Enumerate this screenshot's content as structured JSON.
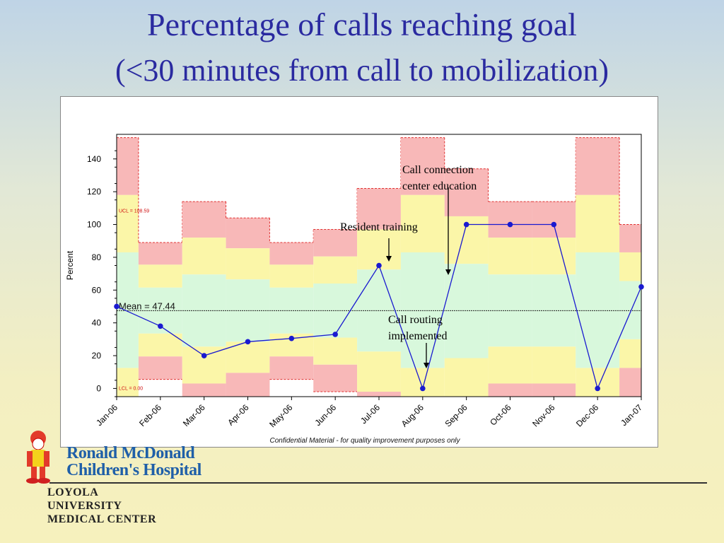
{
  "header": {
    "title": "Percentage of calls reaching goal",
    "subtitle": "(<30 minutes from call to mobilization)"
  },
  "chart_data": {
    "type": "line",
    "title": "Percentage of calls reaching goal",
    "subtitle": "(<30 minutes from call to mobilization)",
    "xlabel": "",
    "ylabel": "Percent",
    "categories": [
      "Jan-06",
      "Feb-06",
      "Mar-06",
      "Apr-06",
      "May-06",
      "Jun-06",
      "Jul-06",
      "Aug-06",
      "Sep-06",
      "Oct-06",
      "Nov-06",
      "Dec-06",
      "Jan-07"
    ],
    "series": [
      {
        "values": [
          50,
          38,
          20,
          28.5,
          30.5,
          33,
          75,
          0,
          100,
          100,
          100,
          0,
          62
        ]
      }
    ],
    "ylim": [
      0,
      150
    ],
    "yticks": [
      0,
      20,
      40,
      60,
      80,
      100,
      120,
      140
    ],
    "mean": 47.44,
    "mean_label": "Mean = 47.44",
    "ucl_label": "UCL = 108.59",
    "lcl_label": "LCL = 0.00",
    "zones": [
      {
        "upper": [
          153,
          89,
          114,
          104,
          89,
          97,
          122,
          153,
          134,
          114,
          114,
          153,
          100
        ],
        "bands": [
          [
            118,
            75.5,
            92,
            85.5,
            75.5,
            80.5,
            97,
            118,
            105,
            92,
            92,
            118,
            83
          ],
          [
            83,
            61.5,
            69.5,
            66.5,
            61.5,
            64,
            72.5,
            83,
            76,
            69.5,
            69.5,
            83,
            65.5
          ],
          [
            12.5,
            33.5,
            25.5,
            28.5,
            33.5,
            31,
            22.5,
            12.5,
            18.5,
            25.5,
            25.5,
            12.5,
            30
          ],
          [
            -5,
            19.5,
            3,
            9.5,
            19.5,
            14.5,
            -2,
            -5,
            -5,
            3,
            3,
            -5,
            12.5
          ]
        ],
        "lower": [
          -5,
          5.5,
          -5,
          -5,
          5.5,
          -2,
          -5,
          -5,
          -5,
          -5,
          -5,
          -5,
          -5
        ]
      }
    ],
    "annotations": [
      {
        "text": "Call connection\ncenter education",
        "points_to": "Sep-06"
      },
      {
        "text": "Resident training",
        "points_to": "Jul-06"
      },
      {
        "text": "Call routing\nimplemented",
        "points_to": "Aug-06"
      }
    ],
    "grid": false,
    "line_color": "#1a1ad0",
    "zone_colors": {
      "outer": "#f8b8b8",
      "middle": "#fbf6a8",
      "inner": "#d8f8dc"
    }
  },
  "footer_note": "Confidential Material - for quality improvement purposes only",
  "logo": {
    "hospital_line1": "Ronald McDonald",
    "hospital_line2": "Children's Hospital",
    "university_line1": "LOYOLA",
    "university_line2": "UNIVERSITY",
    "university_line3": "MEDICAL CENTER"
  }
}
